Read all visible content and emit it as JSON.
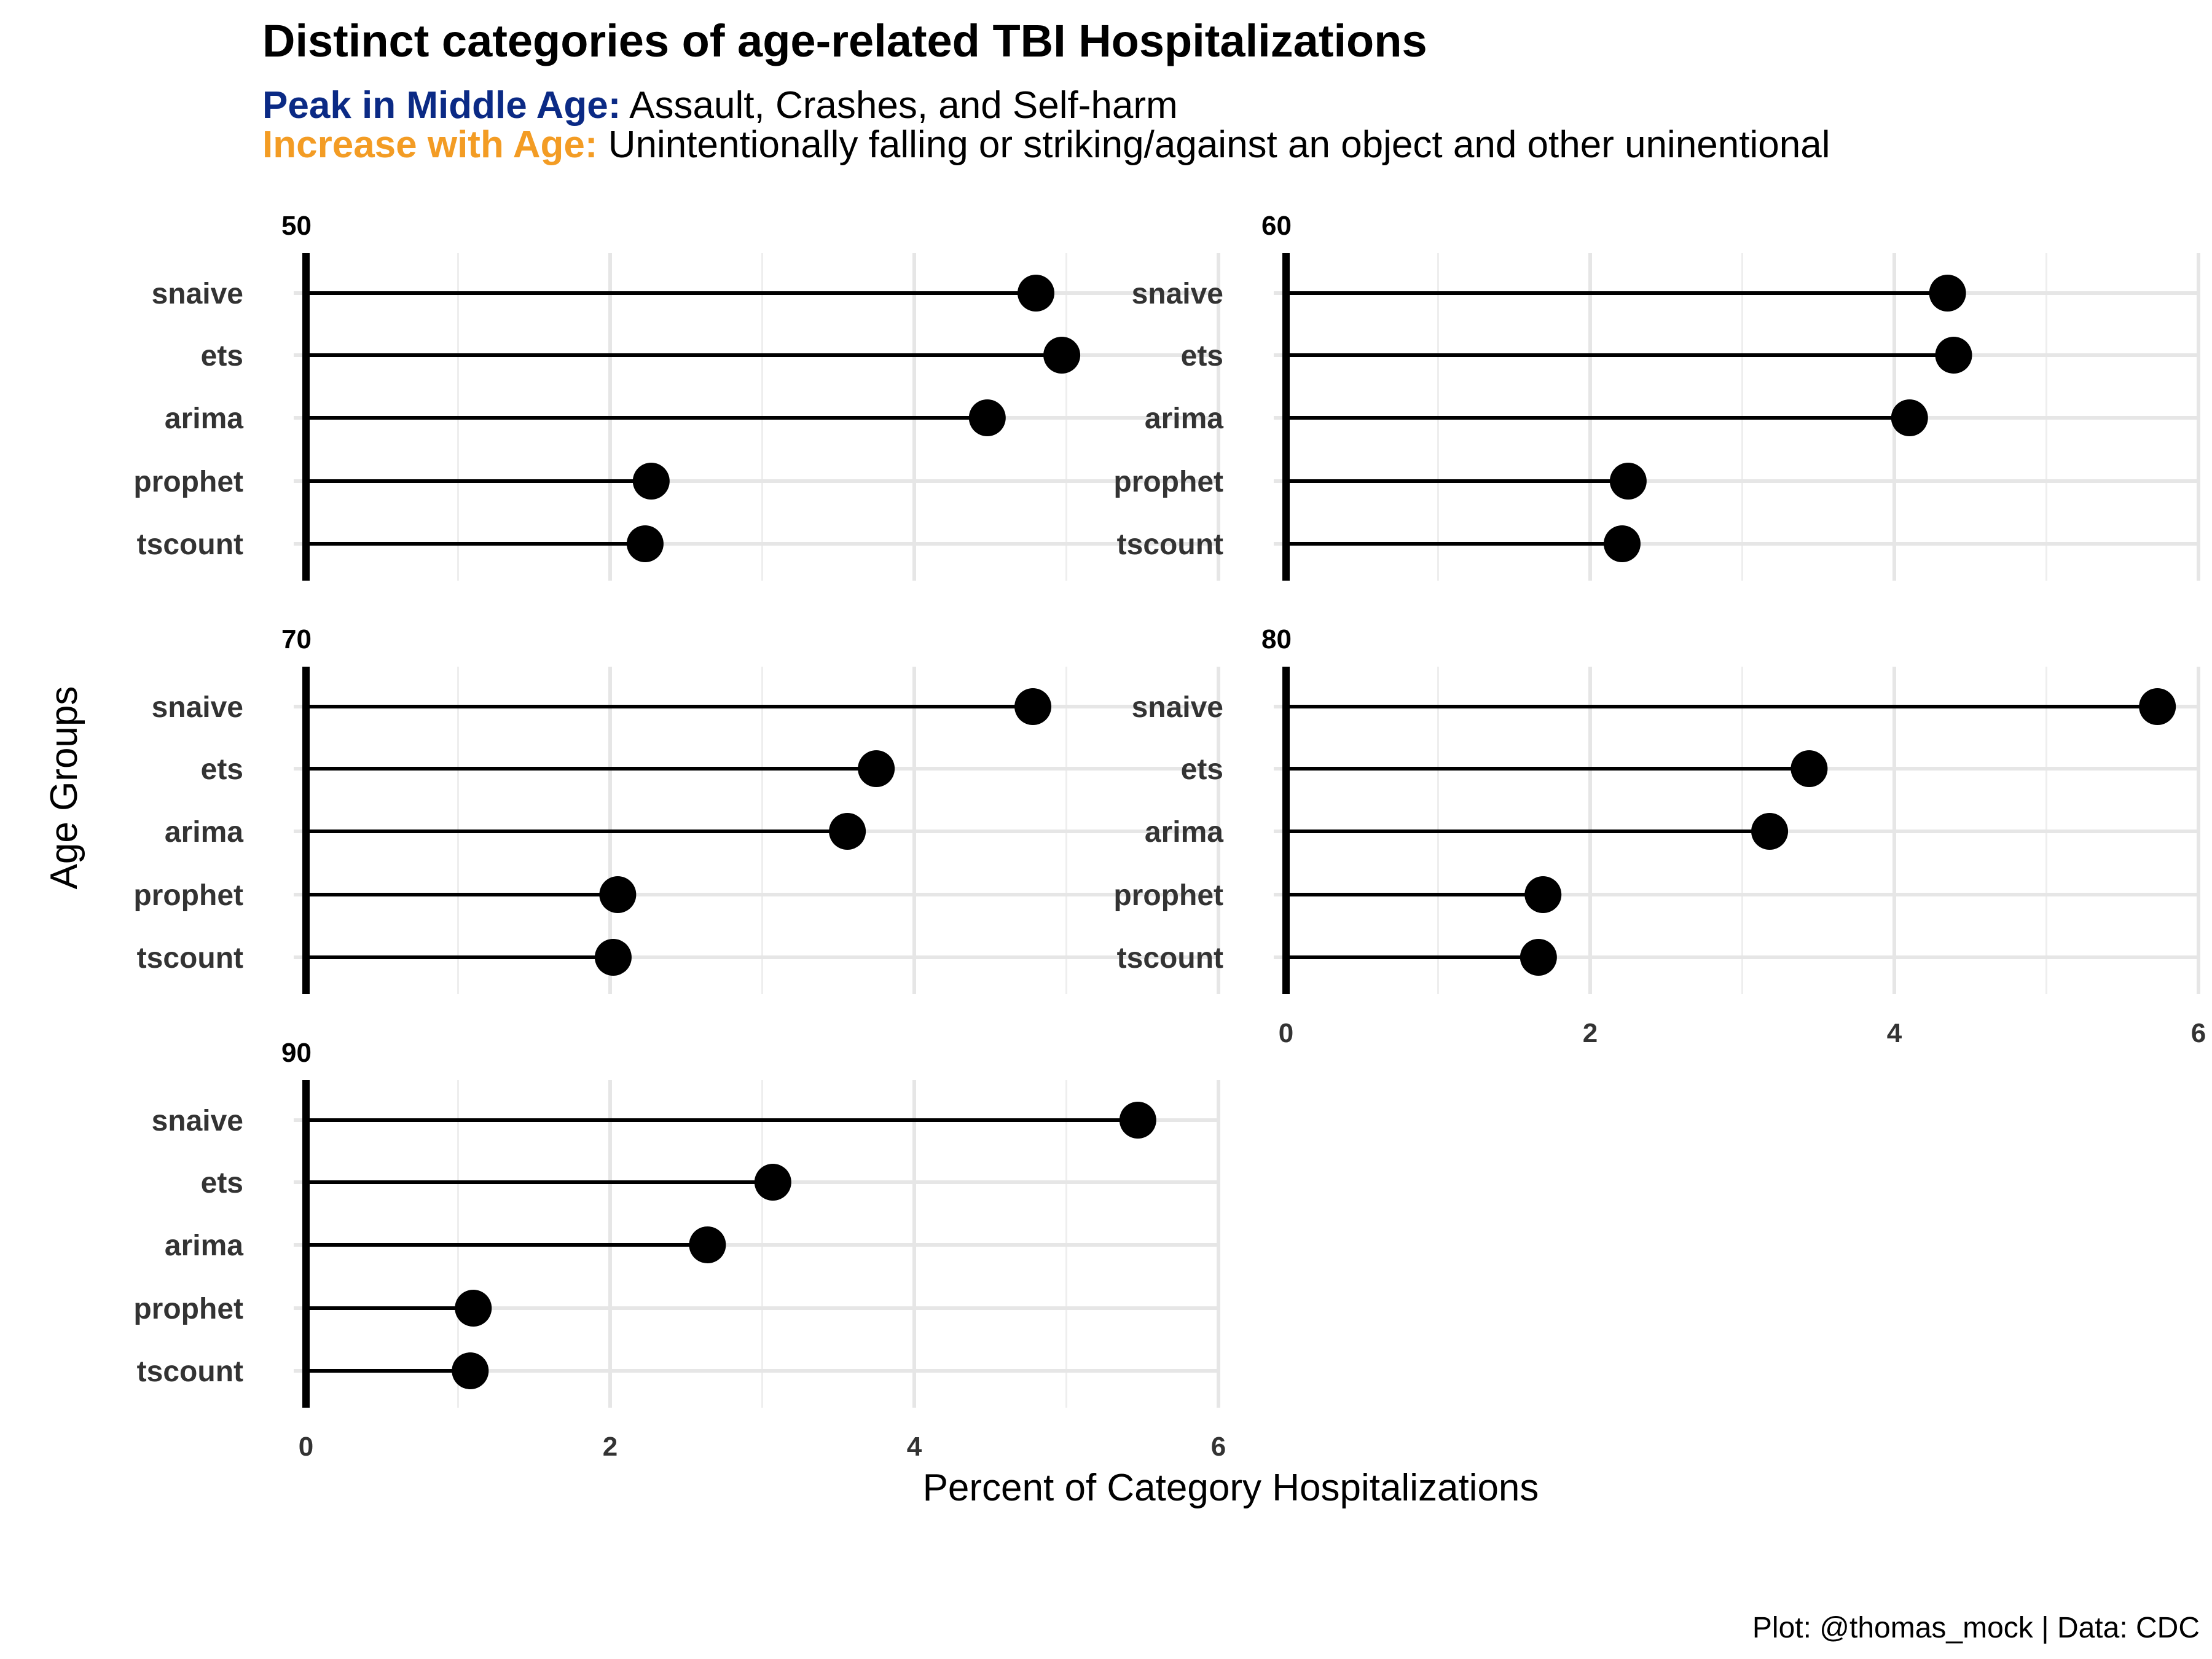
{
  "title": "Distinct categories of age-related TBI Hospitalizations",
  "subtitle": {
    "line1_key": "Peak in Middle Age:",
    "line1_text": " Assault, Crashes, and Self-harm",
    "line2_key": "Increase with Age:",
    "line2_text": " Unintentionally falling or striking/against an object and other uninentional"
  },
  "caption": "Plot: @thomas_mock | Data: CDC",
  "colors": {
    "peak": "#0b2a85",
    "increase": "#f39c24",
    "points": "#000000",
    "grid": "#e6e6e6"
  },
  "chart_data": {
    "type": "lollipop",
    "xlabel": "Percent of Category Hospitalizations",
    "ylabel": "Age Groups",
    "xlim": [
      0,
      6
    ],
    "x_ticks": [
      0,
      2,
      4,
      6
    ],
    "grid": true,
    "categories": [
      "snaive",
      "ets",
      "arima",
      "prophet",
      "tscount"
    ],
    "panels": [
      {
        "label": "50",
        "values": [
          4.8,
          4.97,
          4.48,
          2.27,
          2.23
        ]
      },
      {
        "label": "60",
        "values": [
          4.35,
          4.39,
          4.1,
          2.25,
          2.21
        ]
      },
      {
        "label": "70",
        "values": [
          4.78,
          3.75,
          3.56,
          2.05,
          2.02
        ]
      },
      {
        "label": "80",
        "values": [
          5.73,
          3.44,
          3.18,
          1.69,
          1.66
        ]
      },
      {
        "label": "90",
        "values": [
          5.47,
          3.07,
          2.64,
          1.1,
          1.08
        ]
      }
    ]
  }
}
